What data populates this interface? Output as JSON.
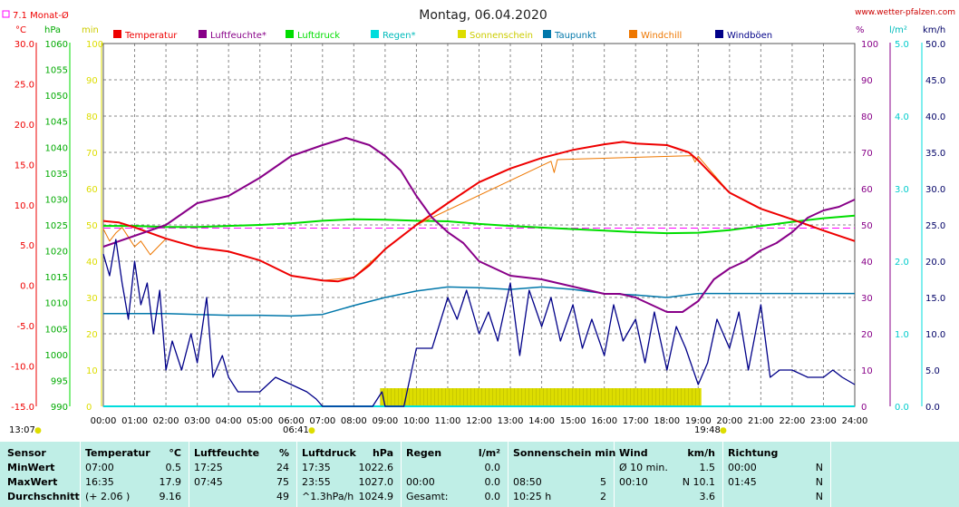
{
  "title": "Montag, 06.04.2020",
  "site": "www.wetter-pfalzen.com",
  "monthly_avg_label": "7.1 Monat-Ø",
  "colors": {
    "temp": "#ee0000",
    "hum": "#880088",
    "press": "#00dd00",
    "rain": "#00dddd",
    "sun": "#dddd00",
    "dew": "#0077aa",
    "chill": "#ee7700",
    "gust": "#000088",
    "grid": "#888888",
    "avg": "#ff00ff"
  },
  "legend": [
    {
      "label": "Temperatur",
      "color": "#ee0000"
    },
    {
      "label": "Luftfeuchte*",
      "color": "#880088"
    },
    {
      "label": "Luftdruck",
      "color": "#00dd00"
    },
    {
      "label": "Regen*",
      "color": "#00dddd"
    },
    {
      "label": "Sonnenschein",
      "color": "#dddd00"
    },
    {
      "label": "Taupunkt",
      "color": "#0077aa"
    },
    {
      "label": "Windchill",
      "color": "#ee7700"
    },
    {
      "label": "Windböen",
      "color": "#000088"
    }
  ],
  "units_left": [
    "°C",
    "hPa",
    "min"
  ],
  "units_right": [
    "%",
    "l/m²",
    "km/h"
  ],
  "sunrise": "13:07",
  "sunrise_marker": "06:41",
  "sunset_marker": "19:48",
  "chart_data": {
    "type": "line",
    "title": "Montag, 06.04.2020",
    "x_ticks": [
      "00:00",
      "01:00",
      "02:00",
      "03:00",
      "04:00",
      "05:00",
      "06:00",
      "07:00",
      "08:00",
      "09:00",
      "10:00",
      "11:00",
      "12:00",
      "13:00",
      "14:00",
      "15:00",
      "16:00",
      "17:00",
      "18:00",
      "19:00",
      "20:00",
      "21:00",
      "22:00",
      "23:00",
      "24:00"
    ],
    "x_range": [
      0,
      24
    ],
    "grid": true,
    "axes": {
      "temp_c": {
        "range": [
          -15,
          30
        ],
        "ticks": [
          "30.0",
          "25.0",
          "20.0",
          "15.0",
          "10.0",
          "5.0",
          "0.0",
          "-5.0",
          "-10.0",
          "-15.0"
        ]
      },
      "pressure_hpa": {
        "range": [
          990,
          1060
        ],
        "ticks": [
          "1060",
          "1055",
          "1050",
          "1045",
          "1040",
          "1035",
          "1030",
          "1025",
          "1020",
          "1015",
          "1010",
          "1005",
          "1000",
          "995",
          "990"
        ]
      },
      "sun_min": {
        "range": [
          0,
          100
        ],
        "ticks": [
          "100",
          "90",
          "80",
          "70",
          "60",
          "50",
          "40",
          "30",
          "20",
          "10",
          "0"
        ]
      },
      "humidity_pct": {
        "range": [
          0,
          100
        ],
        "ticks": [
          "100",
          "90",
          "80",
          "70",
          "60",
          "50",
          "40",
          "30",
          "20",
          "10",
          "0"
        ]
      },
      "rain_lm2": {
        "range": [
          0,
          5
        ],
        "ticks": [
          "5.0",
          "4.0",
          "3.0",
          "2.0",
          "1.0",
          "0.0"
        ]
      },
      "wind_kmh": {
        "range": [
          0,
          50
        ],
        "ticks": [
          "50.0",
          "45.0",
          "40.0",
          "35.0",
          "30.0",
          "25.0",
          "20.0",
          "15.0",
          "10.0",
          "5.0",
          "0.0"
        ]
      }
    },
    "monthly_avg_temp": 7.1,
    "series": [
      {
        "name": "Temperatur",
        "axis": "temp_c",
        "x": [
          0,
          0.5,
          1,
          2,
          3,
          4,
          5,
          6,
          7,
          7.5,
          8,
          8.5,
          9,
          10,
          11,
          12,
          13,
          14,
          15,
          16,
          16.6,
          17,
          18,
          18.7,
          19,
          20,
          21,
          22,
          23,
          24
        ],
        "y": [
          8.0,
          7.8,
          7.2,
          5.8,
          4.7,
          4.2,
          3.1,
          1.2,
          0.6,
          0.5,
          1.0,
          2.5,
          4.5,
          7.5,
          10.2,
          12.8,
          14.5,
          15.8,
          16.8,
          17.5,
          17.8,
          17.6,
          17.4,
          16.5,
          15.5,
          11.5,
          9.5,
          8.2,
          6.8,
          5.5
        ]
      },
      {
        "name": "Windchill",
        "axis": "temp_c",
        "x": [
          0,
          0.2,
          0.4,
          0.6,
          0.8,
          1.0,
          1.2,
          1.5,
          2,
          3,
          4,
          5,
          6,
          7,
          8,
          9,
          10,
          14.3,
          14.4,
          14.5,
          18.8,
          18.9,
          19,
          20,
          21,
          22,
          23,
          24
        ],
        "y": [
          7.0,
          5.5,
          6.5,
          7.2,
          6.0,
          4.8,
          5.5,
          3.8,
          5.8,
          4.7,
          4.2,
          3.1,
          1.2,
          0.6,
          1.0,
          4.5,
          7.5,
          15.4,
          14.0,
          15.6,
          16.1,
          15.3,
          16.0,
          11.5,
          9.5,
          8.2,
          6.8,
          5.5
        ]
      },
      {
        "name": "Luftfeuchte*",
        "axis": "humidity_pct",
        "x": [
          0,
          1,
          2,
          3,
          4,
          5,
          6,
          7,
          7.75,
          8.5,
          9,
          9.5,
          10,
          10.5,
          11,
          11.5,
          12,
          12.5,
          13,
          14,
          15,
          15.5,
          16,
          16.5,
          17,
          17.5,
          18,
          18.5,
          19,
          19.5,
          20,
          20.5,
          21,
          21.5,
          22,
          22.5,
          23,
          23.5,
          24
        ],
        "y": [
          44,
          47,
          50,
          56,
          58,
          63,
          69,
          72,
          74,
          72,
          69,
          65,
          58,
          52,
          48,
          45,
          40,
          38,
          36,
          35,
          33,
          32,
          31,
          31,
          30,
          28,
          26,
          26,
          29,
          35,
          38,
          40,
          43,
          45,
          48,
          52,
          54,
          55,
          57
        ]
      },
      {
        "name": "Luftdruck",
        "axis": "pressure_hpa",
        "x": [
          0,
          1,
          2,
          3,
          4,
          5,
          6,
          7,
          8,
          9,
          10,
          11,
          12,
          13,
          14,
          15,
          16,
          17,
          18,
          19,
          20,
          21,
          22,
          23,
          24
        ],
        "y": [
          1024.8,
          1024.8,
          1024.6,
          1024.6,
          1024.8,
          1025.0,
          1025.3,
          1025.8,
          1026.1,
          1026.0,
          1025.8,
          1025.7,
          1025.2,
          1024.8,
          1024.5,
          1024.2,
          1023.9,
          1023.6,
          1023.4,
          1023.5,
          1024.0,
          1024.8,
          1025.6,
          1026.3,
          1026.8
        ]
      },
      {
        "name": "Taupunkt",
        "axis": "temp_c",
        "x": [
          0,
          1,
          2,
          3,
          4,
          5,
          6,
          7,
          8,
          9,
          10,
          11,
          12,
          13,
          14,
          15,
          16,
          17,
          18,
          19,
          20,
          21,
          22,
          23,
          24
        ],
        "y": [
          -3.5,
          -3.5,
          -3.5,
          -3.6,
          -3.7,
          -3.7,
          -3.8,
          -3.6,
          -2.5,
          -1.5,
          -0.7,
          -0.2,
          -0.3,
          -0.5,
          -0.2,
          -0.5,
          -1.0,
          -1.2,
          -1.5,
          -1.0,
          -1.0,
          -1.0,
          -1.0,
          -1.0,
          -1.0
        ]
      },
      {
        "name": "Windböen",
        "axis": "wind_kmh",
        "x": [
          0,
          0.2,
          0.4,
          0.6,
          0.8,
          1.0,
          1.2,
          1.4,
          1.6,
          1.8,
          2,
          2.2,
          2.5,
          2.8,
          3,
          3.3,
          3.5,
          3.8,
          4,
          4.3,
          4.7,
          5,
          5.5,
          6,
          6.5,
          6.8,
          7,
          7.5,
          8,
          8.3,
          8.6,
          8.9,
          9,
          9.3,
          9.6,
          10,
          10.5,
          11,
          11.3,
          11.6,
          12,
          12.3,
          12.6,
          13,
          13.3,
          13.6,
          14,
          14.3,
          14.6,
          15,
          15.3,
          15.6,
          16,
          16.3,
          16.6,
          17,
          17.3,
          17.6,
          18,
          18.3,
          18.6,
          19,
          19.3,
          19.6,
          20,
          20.3,
          20.6,
          21,
          21.3,
          21.6,
          22,
          22.5,
          23,
          23.3,
          23.6,
          24
        ],
        "y": [
          21,
          18,
          23,
          17,
          12,
          20,
          14,
          17,
          10,
          16,
          5,
          9,
          5,
          10,
          6,
          15,
          4,
          7,
          4,
          2,
          2,
          2,
          4,
          3,
          2,
          1,
          0,
          0,
          0,
          0,
          0,
          2,
          0,
          0,
          0,
          8,
          8,
          15,
          12,
          16,
          10,
          13,
          9,
          17,
          7,
          16,
          11,
          15,
          9,
          14,
          8,
          12,
          7,
          14,
          9,
          12,
          6,
          13,
          5,
          11,
          8,
          3,
          6,
          12,
          8,
          13,
          5,
          14,
          4,
          5,
          5,
          4,
          4,
          5,
          4,
          3
        ]
      },
      {
        "name": "Sonnenschein",
        "axis": "sun_min",
        "x": [
          8.85,
          19.1
        ],
        "y": [
          5,
          5
        ]
      },
      {
        "name": "Regen*",
        "axis": "rain_lm2",
        "x": [
          0,
          24
        ],
        "y": [
          0,
          0
        ]
      }
    ]
  },
  "stats": {
    "columns": [
      {
        "header": "Sensor",
        "unit": "",
        "rows": [
          {
            "a": "MinWert",
            "b": ""
          },
          {
            "a": "MaxWert",
            "b": ""
          },
          {
            "a": "Durchschnitt",
            "b": ""
          }
        ]
      },
      {
        "header": "Temperatur",
        "unit": "°C",
        "rows": [
          {
            "a": "07:00",
            "b": "0.5"
          },
          {
            "a": "16:35",
            "b": "17.9"
          },
          {
            "a": "(+ 2.06 )",
            "b": "9.16"
          }
        ]
      },
      {
        "header": "Luftfeuchte",
        "unit": "%",
        "rows": [
          {
            "a": "17:25",
            "b": "24"
          },
          {
            "a": "07:45",
            "b": "75"
          },
          {
            "a": "",
            "b": "49"
          }
        ]
      },
      {
        "header": "Luftdruck",
        "unit": "hPa",
        "rows": [
          {
            "a": "17:35",
            "b": "1022.6"
          },
          {
            "a": "23:55",
            "b": "1027.0"
          },
          {
            "a": "^1.3hPa/h",
            "b": "1024.9"
          }
        ]
      },
      {
        "header": "Regen",
        "unit": "l/m²",
        "rows": [
          {
            "a": "",
            "b": "0.0"
          },
          {
            "a": "00:00",
            "b": "0.0"
          },
          {
            "a": "Gesamt:",
            "b": "0.0"
          }
        ]
      },
      {
        "header": "Sonnenschein min",
        "unit": "",
        "rows": [
          {
            "a": "",
            "b": ""
          },
          {
            "a": "08:50",
            "b": "5"
          },
          {
            "a": "10:25 h",
            "b": "2"
          }
        ]
      },
      {
        "header": "Wind",
        "unit": "km/h",
        "rows": [
          {
            "a": "Ø 10 min.",
            "b": "1.5"
          },
          {
            "a": "00:10",
            "b": "N 10.1"
          },
          {
            "a": "",
            "b": "3.6"
          }
        ]
      },
      {
        "header": "Richtung",
        "unit": "",
        "rows": [
          {
            "a": "00:00",
            "b": "N"
          },
          {
            "a": "01:45",
            "b": "N"
          },
          {
            "a": "",
            "b": "N"
          }
        ]
      }
    ]
  }
}
